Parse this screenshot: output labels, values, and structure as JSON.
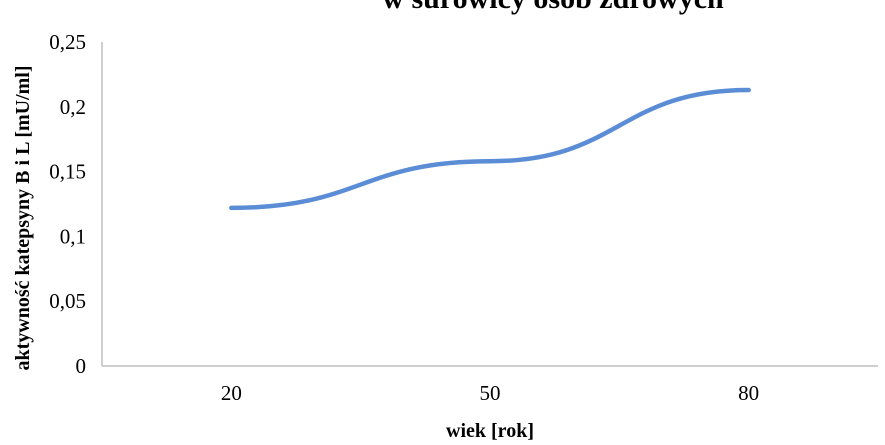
{
  "chart_data": {
    "type": "line",
    "title": "w surowicy osób zdrowych",
    "xlabel": "wiek [rok]",
    "ylabel": "aktywność katepsyny B i L [mU/ml]",
    "categories": [
      "20",
      "50",
      "80"
    ],
    "series": [
      {
        "values": [
          0.122,
          0.158,
          0.213
        ],
        "color": "#5b8dd6"
      }
    ],
    "ylim": [
      0,
      0.25
    ],
    "yticks": [
      0,
      0.05,
      0.1,
      0.15,
      0.2,
      0.25
    ],
    "ytick_labels": [
      "0",
      "0,05",
      "0,1",
      "0,15",
      "0,2",
      "0,25"
    ],
    "grid": false,
    "legend": "none"
  }
}
